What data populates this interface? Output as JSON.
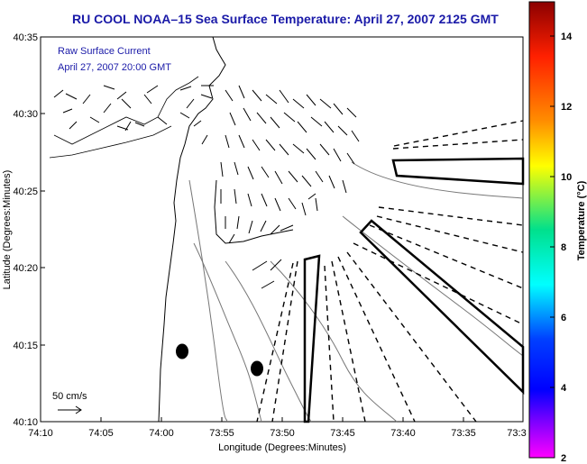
{
  "title": "RU COOL  NOAA–15  Sea Surface Temperature:  April 27, 2007 2125 GMT",
  "overlay": {
    "line1": "Raw Surface Current",
    "line2": "April 27, 2007 20:00 GMT"
  },
  "scale": {
    "label": "50 cm/s"
  },
  "axes": {
    "xlabel": "Longitude (Degrees:Minutes)",
    "ylabel": "Latitude (Degrees:Minutes)",
    "xticks": [
      "74:10",
      "74:05",
      "74:00",
      "73:55",
      "73:50",
      "73:45",
      "73:40",
      "73:35",
      "73:3"
    ],
    "yticks": [
      "40:35",
      "40:30",
      "40:25",
      "40:20",
      "40:15",
      "40:10"
    ]
  },
  "colorbar": {
    "label": "Temperature (°C)",
    "ticks": [
      "14",
      "12",
      "10",
      "8",
      "6",
      "4",
      "2"
    ],
    "colors": [
      "#8b0000",
      "#ff2000",
      "#ff8c00",
      "#ffff00",
      "#00e08c",
      "#00ffff",
      "#0040ff",
      "#0000ff",
      "#7b00ff",
      "#ff00ff"
    ]
  }
}
